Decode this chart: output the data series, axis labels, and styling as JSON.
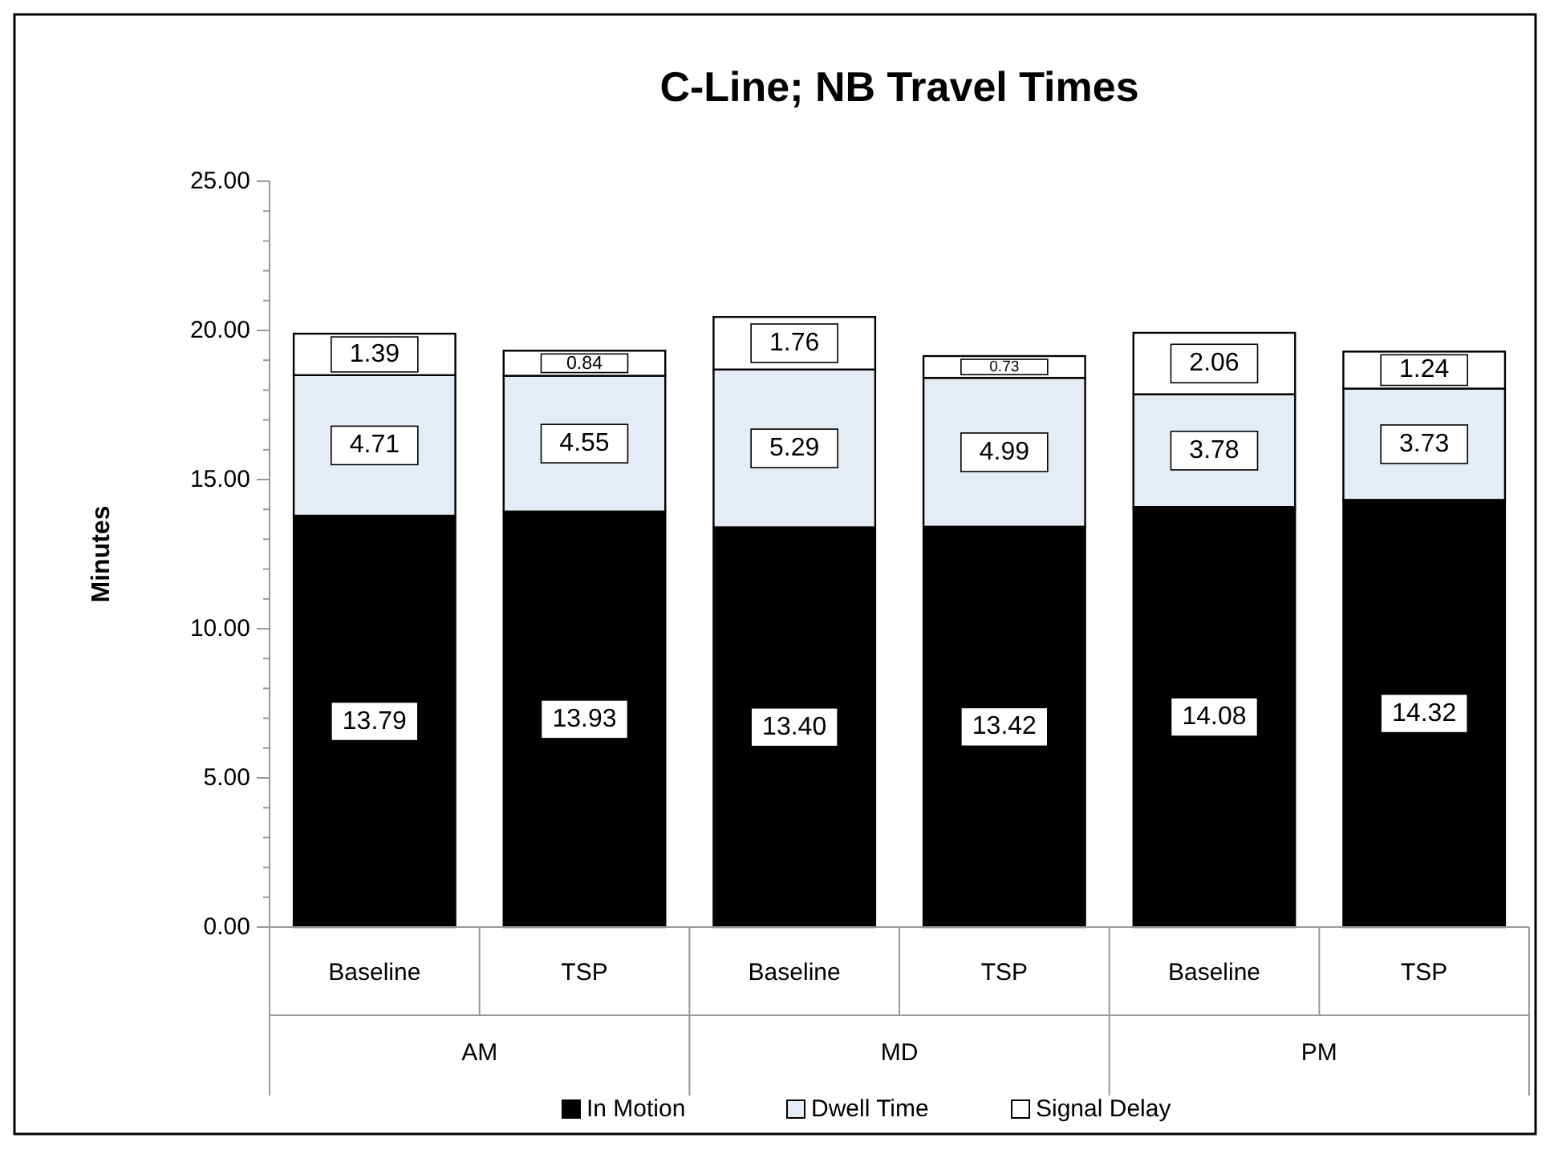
{
  "chart_data": {
    "type": "bar",
    "stacked": true,
    "title": "C-Line;  NB Travel Times",
    "ylabel": "Minutes",
    "categories": [
      "Baseline",
      "TSP",
      "Baseline",
      "TSP",
      "Baseline",
      "TSP"
    ],
    "annotations": [
      "AM",
      "MD",
      "PM"
    ],
    "series": [
      {
        "name": "In Motion",
        "color": "#000000",
        "values": [
          13.79,
          13.93,
          13.4,
          13.42,
          14.08,
          14.32
        ],
        "value_labels": [
          "13.79",
          "13.93",
          "13.40",
          "13.42",
          "14.08",
          "14.32"
        ]
      },
      {
        "name": "Dwell Time",
        "color": "#e4ecf6",
        "values": [
          4.71,
          4.55,
          5.29,
          4.99,
          3.78,
          3.73
        ],
        "value_labels": [
          "4.71",
          "4.55",
          "5.29",
          "4.99",
          "3.78",
          "3.73"
        ]
      },
      {
        "name": "Signal Delay",
        "color": "#ffffff",
        "values": [
          1.39,
          0.84,
          1.76,
          0.73,
          2.06,
          1.24
        ],
        "value_labels": [
          "1.39",
          "0.84",
          "1.76",
          "0.73",
          "2.06",
          "1.24"
        ]
      }
    ],
    "ylim": [
      0,
      25
    ],
    "yticks": [
      {
        "value": 0,
        "label": "0.00"
      },
      {
        "value": 5,
        "label": "5.00"
      },
      {
        "value": 10,
        "label": "10.00"
      },
      {
        "value": 15,
        "label": "15.00"
      },
      {
        "value": 20,
        "label": "20.00"
      },
      {
        "value": 25,
        "label": "25.00"
      }
    ],
    "legend": "bottom",
    "grid": false
  }
}
